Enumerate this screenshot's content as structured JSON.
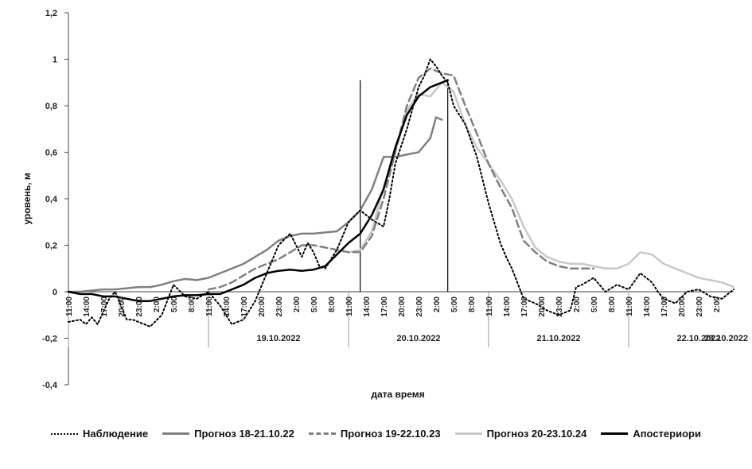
{
  "chart_data": {
    "type": "line",
    "xlabel": "дата время",
    "ylabel": "уровень, м",
    "ylim": [
      -0.4,
      1.2
    ],
    "yticks": [
      "1,2",
      "1",
      "0,8",
      "0,6",
      "0,4",
      "0,2",
      "0",
      "-0,2",
      "-0,4"
    ],
    "x_tick_labels": [
      "11:00",
      "14:00",
      "17:00",
      "20:00",
      "23:00",
      "2:00",
      "5:00",
      "8:00",
      "11:00",
      "14:00",
      "17:00",
      "20:00",
      "23:00",
      "2:00",
      "5:00",
      "8:00",
      "11:00",
      "14:00",
      "17:00",
      "20:00",
      "23:00",
      "2:00",
      "5:00",
      "8:00",
      "11:00",
      "14:00",
      "17:00",
      "20:00",
      "23:00",
      "2:00",
      "5:00",
      "8:00",
      "11:00",
      "14:00",
      "17:00",
      "20:00",
      "23:00",
      "2:00"
    ],
    "date_labels": [
      "19.10.2022",
      "20.10.2022",
      "21.10.2022",
      "22.10.2022",
      "23.10.2022"
    ],
    "x_unit": "hours from 18.10.2022 11:00",
    "x_range": [
      0,
      114
    ],
    "vertical_markers": [
      50,
      65
    ],
    "legend_position": "bottom",
    "series": [
      {
        "name": "Наблюдение",
        "style": "dotted",
        "color": "#000000",
        "x": [
          0,
          2,
          3,
          4,
          5,
          7,
          8,
          10,
          11,
          13,
          14,
          16,
          18,
          20,
          22,
          24,
          26,
          28,
          30,
          32,
          34,
          36,
          38,
          40,
          41,
          42,
          43,
          44,
          46,
          48,
          50,
          52,
          54,
          55,
          56,
          58,
          60,
          61,
          62,
          63,
          64,
          65,
          66,
          68,
          70,
          72,
          74,
          75,
          76,
          78,
          80,
          82,
          84,
          86,
          87,
          88,
          90,
          92,
          94,
          96,
          98,
          100,
          101,
          102,
          104,
          106,
          108,
          110,
          112,
          114
        ],
        "y": [
          -0.13,
          -0.12,
          -0.14,
          -0.11,
          -0.14,
          -0.03,
          0.0,
          -0.12,
          -0.12,
          -0.14,
          -0.15,
          -0.1,
          0.03,
          -0.02,
          -0.03,
          0.0,
          -0.06,
          -0.14,
          -0.12,
          -0.04,
          0.08,
          0.2,
          0.25,
          0.15,
          0.21,
          0.17,
          0.11,
          0.1,
          0.18,
          0.3,
          0.35,
          0.31,
          0.28,
          0.4,
          0.55,
          0.7,
          0.88,
          0.93,
          1.0,
          0.97,
          0.93,
          0.9,
          0.8,
          0.72,
          0.58,
          0.38,
          0.21,
          0.15,
          0.1,
          -0.03,
          -0.05,
          -0.08,
          -0.1,
          -0.08,
          0.02,
          0.03,
          0.06,
          0.0,
          0.03,
          0.01,
          0.08,
          0.04,
          0.0,
          -0.03,
          -0.05,
          0.0,
          0.01,
          -0.02,
          -0.03,
          0.01
        ]
      },
      {
        "name": "Прогноз 18-21.10.22",
        "style": "solid",
        "color": "#808080",
        "x": [
          0,
          2,
          4,
          6,
          8,
          10,
          12,
          14,
          16,
          18,
          20,
          22,
          24,
          26,
          28,
          30,
          32,
          34,
          36,
          38,
          40,
          42,
          44,
          46,
          48,
          50,
          52,
          54,
          56,
          58,
          60,
          62,
          63,
          64
        ],
        "y": [
          0.0,
          0.0,
          0.005,
          0.01,
          0.01,
          0.015,
          0.02,
          0.02,
          0.03,
          0.045,
          0.055,
          0.05,
          0.06,
          0.08,
          0.1,
          0.12,
          0.15,
          0.18,
          0.22,
          0.24,
          0.25,
          0.25,
          0.255,
          0.26,
          0.3,
          0.35,
          0.44,
          0.58,
          0.58,
          0.59,
          0.6,
          0.66,
          0.75,
          0.74
        ]
      },
      {
        "name": "Прогноз 19-22.10.23",
        "style": "dashed",
        "color": "#808080",
        "x": [
          24,
          26,
          28,
          30,
          32,
          34,
          36,
          38,
          40,
          42,
          44,
          46,
          48,
          50,
          52,
          54,
          56,
          58,
          60,
          62,
          64,
          66,
          68,
          70,
          72,
          74,
          76,
          78,
          80,
          82,
          84,
          86,
          88,
          90
        ],
        "y": [
          0.01,
          0.02,
          0.04,
          0.07,
          0.1,
          0.12,
          0.14,
          0.17,
          0.2,
          0.2,
          0.19,
          0.18,
          0.17,
          0.17,
          0.24,
          0.4,
          0.6,
          0.8,
          0.92,
          0.96,
          0.94,
          0.93,
          0.8,
          0.68,
          0.55,
          0.45,
          0.36,
          0.22,
          0.17,
          0.13,
          0.11,
          0.1,
          0.1,
          0.1
        ]
      },
      {
        "name": "Прогноз 20-23.10.24",
        "style": "solid",
        "color": "#c8c8c8",
        "x": [
          48,
          50,
          52,
          54,
          56,
          58,
          60,
          62,
          64,
          66,
          68,
          70,
          72,
          74,
          76,
          78,
          80,
          82,
          84,
          86,
          88,
          90,
          92,
          94,
          96,
          98,
          100,
          102,
          104,
          106,
          108,
          110,
          112,
          114
        ],
        "y": [
          0.17,
          0.18,
          0.26,
          0.45,
          0.6,
          0.78,
          0.85,
          0.84,
          0.9,
          0.86,
          0.72,
          0.62,
          0.55,
          0.48,
          0.4,
          0.28,
          0.19,
          0.15,
          0.13,
          0.12,
          0.12,
          0.11,
          0.1,
          0.1,
          0.12,
          0.17,
          0.16,
          0.12,
          0.1,
          0.08,
          0.06,
          0.05,
          0.04,
          0.02
        ]
      },
      {
        "name": "Апостериори",
        "style": "solid",
        "color": "#000000",
        "x": [
          0,
          2,
          4,
          6,
          8,
          10,
          12,
          14,
          16,
          18,
          20,
          22,
          24,
          26,
          28,
          30,
          32,
          34,
          36,
          38,
          40,
          42,
          44,
          46,
          48,
          50,
          52,
          54,
          56,
          58,
          60,
          62,
          64,
          65
        ],
        "y": [
          0.0,
          -0.01,
          -0.01,
          -0.02,
          -0.02,
          -0.03,
          -0.04,
          -0.04,
          -0.03,
          -0.02,
          -0.015,
          -0.015,
          -0.01,
          -0.01,
          0.01,
          0.03,
          0.06,
          0.08,
          0.09,
          0.095,
          0.09,
          0.095,
          0.11,
          0.16,
          0.21,
          0.25,
          0.33,
          0.44,
          0.62,
          0.76,
          0.84,
          0.88,
          0.9,
          0.91
        ]
      }
    ]
  }
}
